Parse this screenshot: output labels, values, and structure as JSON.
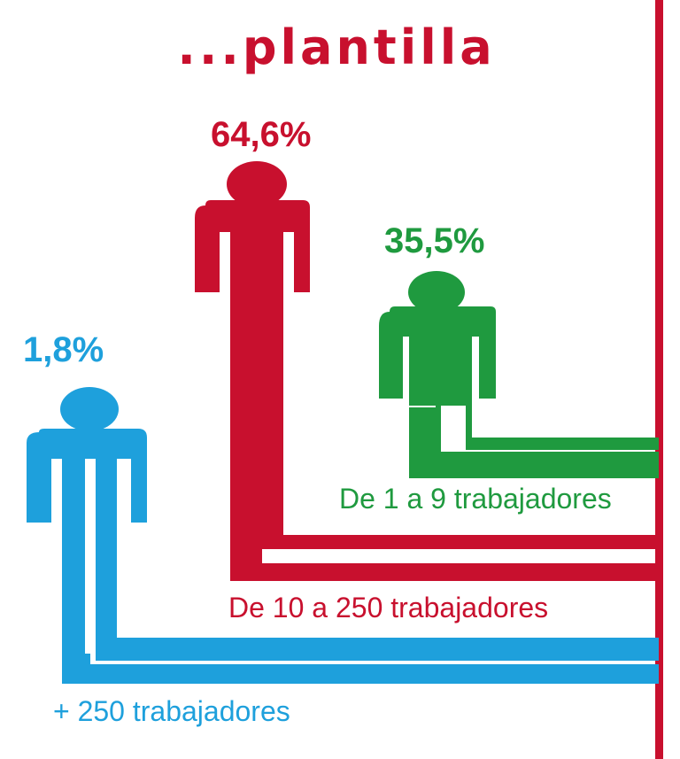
{
  "colors": {
    "red": "#c8102e",
    "green": "#1f9a3f",
    "blue": "#1ea0dc",
    "background": "#ffffff"
  },
  "icon": "person-icon",
  "title": "...plantilla",
  "chart_data": {
    "type": "bar",
    "categories": [
      "+ 250 trabajadores",
      "De 10 a 250 trabajadores",
      "De 1 a 9 trabajadores"
    ],
    "values": [
      1.8,
      64.6,
      35.5
    ],
    "value_labels": [
      "1,8%",
      "64,6%",
      "35,5%"
    ],
    "series_colors": [
      "#1ea0dc",
      "#c8102e",
      "#1f9a3f"
    ]
  }
}
